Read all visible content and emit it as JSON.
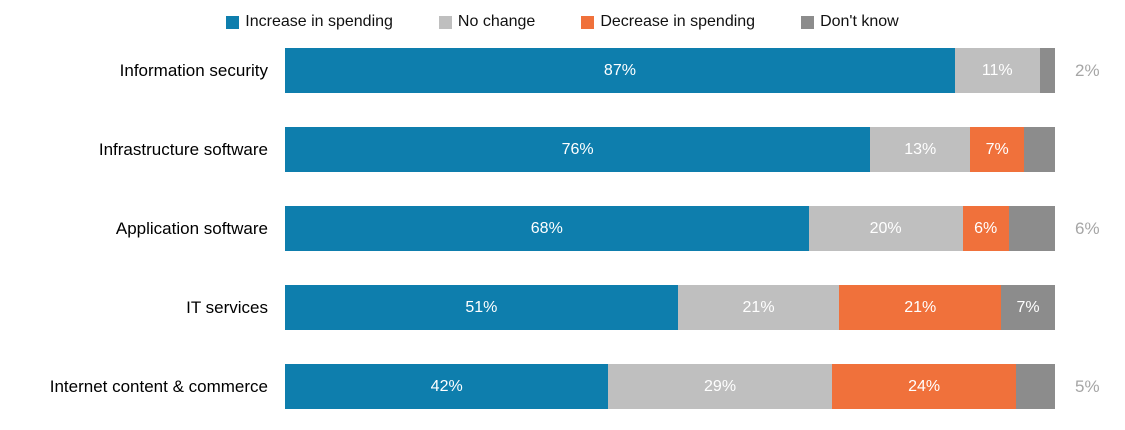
{
  "colors": {
    "increase": "#0E7EAD",
    "no_change": "#BFBFBF",
    "decrease": "#F0713B",
    "dont_know": "#8C8C8C",
    "outside_label": "#A6A6A6",
    "legend_text": "#111111"
  },
  "legend": [
    {
      "key": "increase",
      "label": "Increase in spending"
    },
    {
      "key": "no_change",
      "label": "No change"
    },
    {
      "key": "decrease",
      "label": "Decrease in spending"
    },
    {
      "key": "dont_know",
      "label": "Don't know"
    }
  ],
  "chart_data": {
    "type": "bar",
    "orientation": "horizontal_stacked",
    "title": "",
    "xlabel": "",
    "ylabel": "",
    "xlim": [
      0,
      100
    ],
    "grid": false,
    "legend_position": "top",
    "categories": [
      "Information security",
      "Infrastructure software",
      "Application software",
      "IT services",
      "Internet content & commerce"
    ],
    "series": [
      {
        "name": "Increase in spending",
        "key": "increase",
        "values": [
          87,
          76,
          68,
          51,
          42
        ]
      },
      {
        "name": "No change",
        "key": "no_change",
        "values": [
          11,
          13,
          20,
          21,
          29
        ]
      },
      {
        "name": "Decrease in spending",
        "key": "decrease",
        "values": [
          0,
          7,
          6,
          21,
          24
        ]
      },
      {
        "name": "Don't know",
        "key": "dont_know",
        "values": [
          2,
          4,
          6,
          7,
          5
        ]
      }
    ],
    "rows": [
      {
        "category": "Information security",
        "segments": [
          {
            "series": "increase",
            "value": 87,
            "label": "87%"
          },
          {
            "series": "no_change",
            "value": 11,
            "label": "11%"
          },
          {
            "series": "dont_know",
            "value": 2,
            "label": ""
          }
        ],
        "outside_label": "2%"
      },
      {
        "category": "Infrastructure software",
        "segments": [
          {
            "series": "increase",
            "value": 76,
            "label": "76%"
          },
          {
            "series": "no_change",
            "value": 13,
            "label": "13%"
          },
          {
            "series": "decrease",
            "value": 7,
            "label": "7%"
          },
          {
            "series": "dont_know",
            "value": 4,
            "label": ""
          }
        ],
        "outside_label": ""
      },
      {
        "category": "Application software",
        "segments": [
          {
            "series": "increase",
            "value": 68,
            "label": "68%"
          },
          {
            "series": "no_change",
            "value": 20,
            "label": "20%"
          },
          {
            "series": "decrease",
            "value": 6,
            "label": "6%"
          },
          {
            "series": "dont_know",
            "value": 6,
            "label": ""
          }
        ],
        "outside_label": "6%"
      },
      {
        "category": "IT services",
        "segments": [
          {
            "series": "increase",
            "value": 51,
            "label": "51%"
          },
          {
            "series": "no_change",
            "value": 21,
            "label": "21%"
          },
          {
            "series": "decrease",
            "value": 21,
            "label": "21%"
          },
          {
            "series": "dont_know",
            "value": 7,
            "label": "7%"
          }
        ],
        "outside_label": ""
      },
      {
        "category": "Internet content & commerce",
        "segments": [
          {
            "series": "increase",
            "value": 42,
            "label": "42%"
          },
          {
            "series": "no_change",
            "value": 29,
            "label": "29%"
          },
          {
            "series": "decrease",
            "value": 24,
            "label": "24%"
          },
          {
            "series": "dont_know",
            "value": 5,
            "label": ""
          }
        ],
        "outside_label": "5%"
      }
    ]
  }
}
